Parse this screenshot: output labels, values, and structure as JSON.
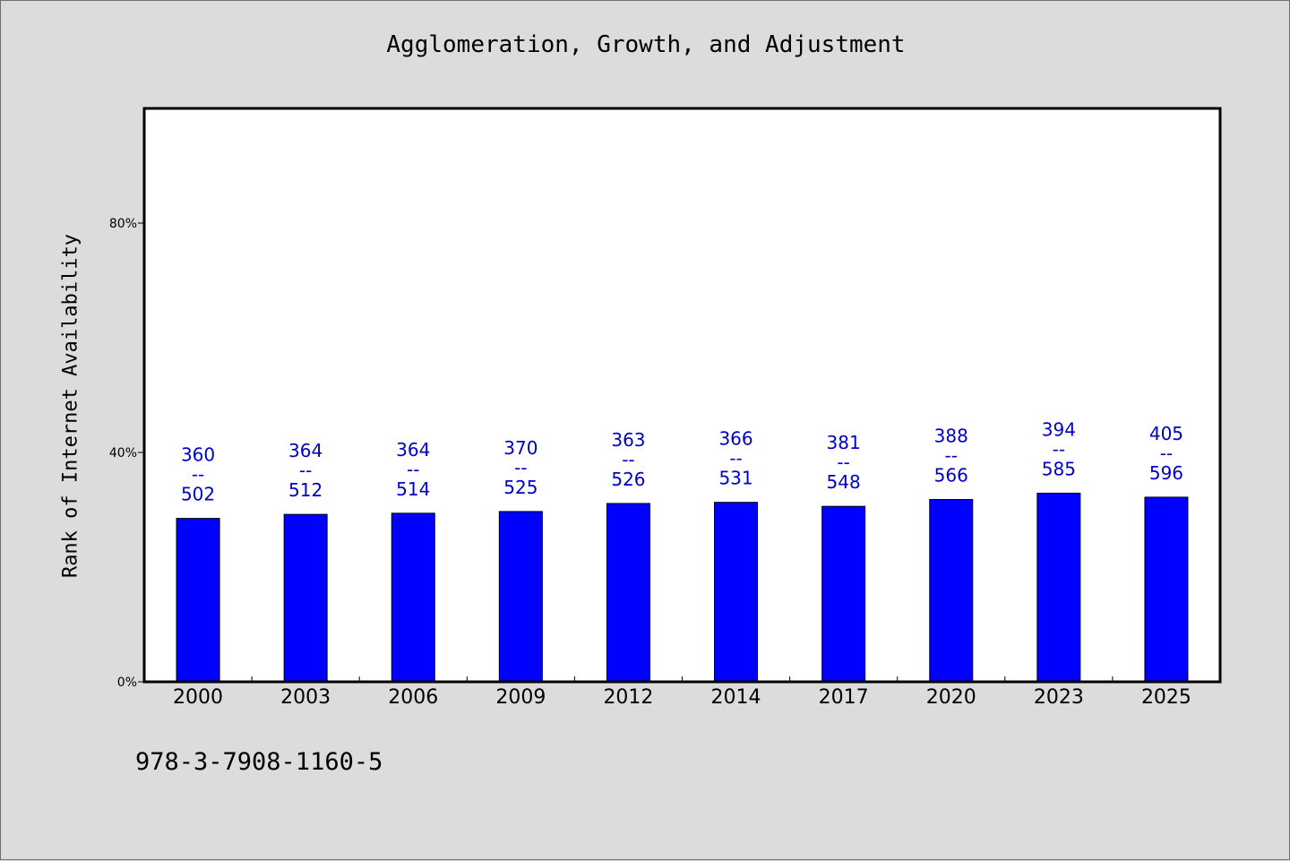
{
  "chart_data": {
    "type": "bar",
    "title": "Agglomeration, Growth, and Adjustment",
    "xlabel": "",
    "ylabel": "Rank of Internet Availability",
    "categories": [
      "2000",
      "2003",
      "2006",
      "2009",
      "2012",
      "2014",
      "2017",
      "2020",
      "2023",
      "2025"
    ],
    "values": [
      28.5,
      29.2,
      29.4,
      29.7,
      31.1,
      31.3,
      30.6,
      31.8,
      32.9,
      32.2
    ],
    "data_labels_top": [
      "360",
      "364",
      "364",
      "370",
      "363",
      "366",
      "381",
      "388",
      "394",
      "405"
    ],
    "data_labels_bottom": [
      "502",
      "512",
      "514",
      "525",
      "526",
      "531",
      "548",
      "566",
      "585",
      "596"
    ],
    "label_separator": "--",
    "ylim": [
      0,
      100
    ],
    "yticks": [
      0,
      40,
      80
    ],
    "ytick_labels": [
      "0%",
      "40%",
      "80%"
    ],
    "grid": false,
    "bar_color": "#0000ff",
    "label_color": "#0000cc",
    "plot_background": "#ffffff",
    "page_background": "#dcdcdc"
  },
  "footer": {
    "code": "978-3-7908-1160-5"
  }
}
